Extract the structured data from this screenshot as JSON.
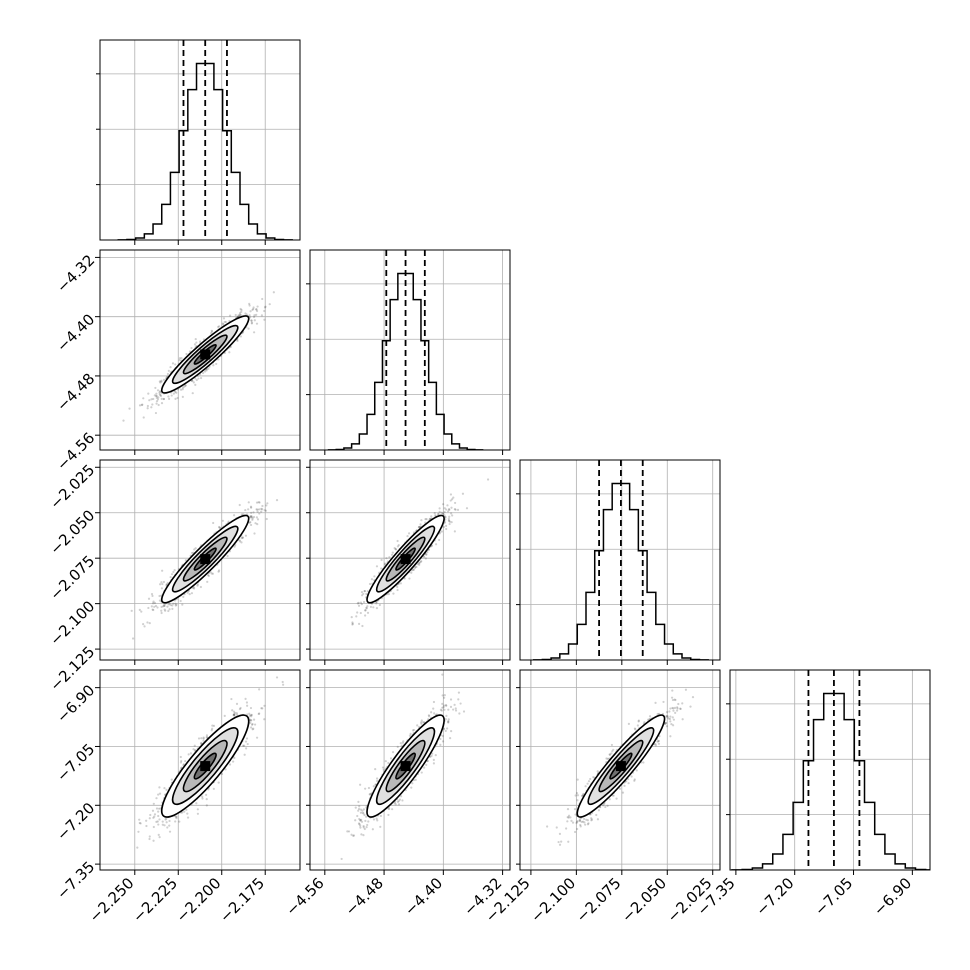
{
  "chart_data": {
    "type": "corner",
    "colors": {
      "mark": "#000000",
      "grid": "#b0b0b0",
      "background": "#ffffff"
    },
    "grid": true,
    "parameters": [
      {
        "range": [
          -2.27,
          -2.155
        ],
        "ticks": [
          -2.25,
          -2.225,
          -2.2,
          -2.175
        ],
        "tick_labels": [
          "−2.250",
          "−2.225",
          "−2.200",
          "−2.175"
        ],
        "quantiles": [
          -2.222,
          -2.2095,
          -2.197
        ],
        "mean": -2.2095,
        "sd": 0.0125
      },
      {
        "range": [
          -4.58,
          -4.31
        ],
        "ticks": [
          -4.56,
          -4.48,
          -4.4,
          -4.32
        ],
        "tick_labels": [
          "−4.56",
          "−4.48",
          "−4.40",
          "−4.32"
        ],
        "quantiles": [
          -4.477,
          -4.451,
          -4.425
        ],
        "mean": -4.451,
        "sd": 0.026
      },
      {
        "range": [
          -2.131,
          -2.021
        ],
        "ticks": [
          -2.125,
          -2.1,
          -2.075,
          -2.05,
          -2.025
        ],
        "tick_labels": [
          "−2.125",
          "−2.100",
          "−2.075",
          "−2.050",
          "−2.025"
        ],
        "quantiles": [
          -2.0875,
          -2.0755,
          -2.0635
        ],
        "mean": -2.0755,
        "sd": 0.012
      },
      {
        "range": [
          -7.365,
          -6.855
        ],
        "ticks": [
          -7.35,
          -7.2,
          -7.05,
          -6.9
        ],
        "tick_labels": [
          "−7.35",
          "−7.20",
          "−7.05",
          "−6.90"
        ],
        "quantiles": [
          -7.165,
          -7.1,
          -7.035
        ],
        "mean": -7.1,
        "sd": 0.065
      }
    ],
    "correlations": [
      [
        1,
        0.93,
        0.93,
        0.88
      ],
      [
        0.93,
        1,
        0.93,
        0.9
      ],
      [
        0.93,
        0.93,
        1,
        0.93
      ],
      [
        0.88,
        0.9,
        0.93,
        1
      ]
    ],
    "histogram_bins": 20,
    "contour_levels_sigma": [
      0.5,
      1.0,
      1.5,
      2.0
    ]
  }
}
